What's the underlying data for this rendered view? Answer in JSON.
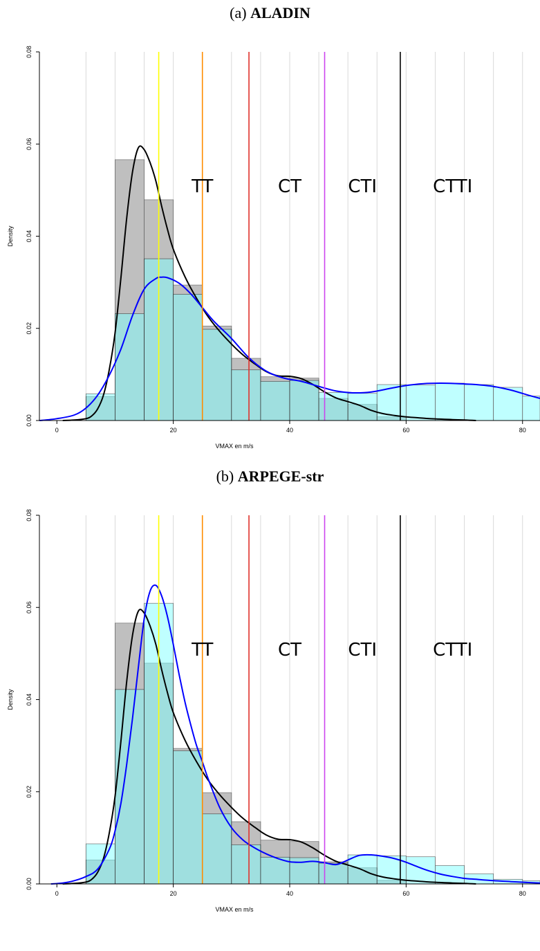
{
  "chart_data": [
    {
      "type": "bar",
      "panel_letter": "(a)",
      "title": "ALADIN",
      "xlabel": "VMAX en m/s",
      "ylabel": "Density",
      "xlim": [
        -3,
        83
      ],
      "ylim": [
        0,
        0.08
      ],
      "x_ticks": [
        "0",
        "20",
        "40",
        "60",
        "80"
      ],
      "y_ticks": [
        "0.00",
        "0.02",
        "0.04",
        "0.06",
        "0.08"
      ],
      "grid": "vertical",
      "bin_edges": [
        5,
        10,
        15,
        20,
        25,
        30,
        35,
        40,
        45,
        50,
        55,
        60,
        65,
        70,
        75,
        80,
        85
      ],
      "series": [
        {
          "kind": "histogram",
          "color": "#808080",
          "values": [
            0.0052,
            0.0566,
            0.0479,
            0.0294,
            0.0205,
            0.0135,
            0.0095,
            0.0092,
            0.0048,
            0.0035,
            0.0008,
            0,
            0,
            0,
            0,
            0
          ]
        },
        {
          "kind": "histogram",
          "color": "#80ffff",
          "values": [
            0.0058,
            0.0232,
            0.0351,
            0.0274,
            0.0198,
            0.011,
            0.0085,
            0.0087,
            0.0061,
            0.0059,
            0.0078,
            0.0077,
            0.0081,
            0.0078,
            0.0072,
            0.0053
          ]
        },
        {
          "kind": "density",
          "color": "#000000",
          "x": [
            1,
            3,
            5,
            6,
            7,
            8,
            9,
            10,
            11,
            12,
            13,
            14,
            15,
            16,
            17,
            18,
            19,
            20,
            22,
            24,
            26,
            28,
            30,
            32,
            34,
            36,
            38,
            40,
            42,
            44,
            46,
            48,
            50,
            52,
            54,
            56,
            58,
            60,
            62,
            64,
            66,
            68,
            70,
            72
          ],
          "y": [
            0,
            0.0001,
            0.0004,
            0.001,
            0.0025,
            0.0055,
            0.011,
            0.019,
            0.031,
            0.044,
            0.054,
            0.0592,
            0.0588,
            0.056,
            0.052,
            0.0465,
            0.0415,
            0.0372,
            0.0312,
            0.0265,
            0.0225,
            0.0193,
            0.0166,
            0.0142,
            0.0123,
            0.0106,
            0.0097,
            0.0096,
            0.0091,
            0.0078,
            0.0062,
            0.0049,
            0.0041,
            0.0033,
            0.0022,
            0.0015,
            0.0011,
            0.0008,
            0.0006,
            0.0004,
            0.0003,
            0.0002,
            0.0001,
            0
          ]
        },
        {
          "kind": "density",
          "color": "#0000ff",
          "x": [
            -3,
            0,
            3,
            5,
            7,
            9,
            11,
            13,
            15,
            17,
            18,
            19,
            21,
            23,
            25,
            27,
            30,
            33,
            36,
            39,
            42,
            45,
            48,
            51,
            54,
            57,
            60,
            63,
            66,
            69,
            72,
            75,
            78,
            81,
            83
          ],
          "y": [
            0,
            0.0004,
            0.0012,
            0.0027,
            0.0055,
            0.0098,
            0.0155,
            0.0228,
            0.0285,
            0.0308,
            0.0311,
            0.031,
            0.0298,
            0.0275,
            0.0245,
            0.0215,
            0.0178,
            0.0136,
            0.0107,
            0.0092,
            0.0085,
            0.0074,
            0.0064,
            0.006,
            0.0062,
            0.0069,
            0.0076,
            0.008,
            0.0081,
            0.008,
            0.0078,
            0.0074,
            0.0066,
            0.0055,
            0.0048
          ]
        }
      ],
      "vlines": [
        {
          "x": 17.5,
          "color": "#ffff00"
        },
        {
          "x": 25,
          "color": "#ff8c00"
        },
        {
          "x": 33,
          "color": "#e0302a"
        },
        {
          "x": 46,
          "color": "#cc44ee"
        },
        {
          "x": 59,
          "color": "#000000"
        }
      ],
      "annotations": [
        {
          "text": "TT",
          "x": 25,
          "y": 0.0495
        },
        {
          "text": "CT",
          "x": 40,
          "y": 0.0495
        },
        {
          "text": "CTI",
          "x": 52.5,
          "y": 0.0495
        },
        {
          "text": "CTTI",
          "x": 68,
          "y": 0.0495
        }
      ]
    },
    {
      "type": "bar",
      "panel_letter": "(b)",
      "title": "ARPEGE-str",
      "xlabel": "VMAX en m/s",
      "ylabel": "Density",
      "xlim": [
        -3,
        83
      ],
      "ylim": [
        0,
        0.08
      ],
      "x_ticks": [
        "0",
        "20",
        "40",
        "60",
        "80"
      ],
      "y_ticks": [
        "0.00",
        "0.02",
        "0.04",
        "0.06",
        "0.08"
      ],
      "grid": "vertical",
      "bin_edges": [
        5,
        10,
        15,
        20,
        25,
        30,
        35,
        40,
        45,
        50,
        55,
        60,
        65,
        70,
        75,
        80,
        85
      ],
      "series": [
        {
          "kind": "histogram",
          "color": "#808080",
          "values": [
            0.0052,
            0.0566,
            0.0479,
            0.0294,
            0.0198,
            0.0135,
            0.0095,
            0.0092,
            0.0048,
            0.0035,
            0.0008,
            0,
            0,
            0,
            0,
            0
          ]
        },
        {
          "kind": "histogram",
          "color": "#80ffff",
          "values": [
            0.0087,
            0.0422,
            0.0609,
            0.0289,
            0.0152,
            0.0085,
            0.0058,
            0.0057,
            0.0045,
            0.0063,
            0.0061,
            0.0059,
            0.004,
            0.0022,
            0.001,
            0.0007
          ]
        },
        {
          "kind": "density",
          "color": "#000000",
          "x": [
            1,
            3,
            5,
            6,
            7,
            8,
            9,
            10,
            11,
            12,
            13,
            14,
            15,
            16,
            17,
            18,
            19,
            20,
            22,
            24,
            26,
            28,
            30,
            32,
            34,
            36,
            38,
            40,
            42,
            44,
            46,
            48,
            50,
            52,
            54,
            56,
            58,
            60,
            62,
            64,
            66,
            68,
            70,
            72
          ],
          "y": [
            0,
            0.0001,
            0.0004,
            0.001,
            0.0025,
            0.0055,
            0.011,
            0.019,
            0.031,
            0.044,
            0.054,
            0.0592,
            0.0588,
            0.056,
            0.052,
            0.0465,
            0.0415,
            0.0372,
            0.0312,
            0.0265,
            0.0225,
            0.0193,
            0.0166,
            0.0142,
            0.0123,
            0.0106,
            0.0097,
            0.0096,
            0.0091,
            0.0078,
            0.0062,
            0.0049,
            0.0041,
            0.0033,
            0.0022,
            0.0015,
            0.0011,
            0.0008,
            0.0006,
            0.0004,
            0.0003,
            0.0002,
            0.0001,
            0
          ]
        },
        {
          "kind": "density",
          "color": "#0000ff",
          "x": [
            -1,
            1,
            3,
            5,
            7,
            9,
            10,
            11,
            12,
            13,
            14,
            15,
            16,
            17,
            18,
            19,
            20,
            21,
            22,
            23,
            24,
            25,
            26,
            28,
            30,
            32,
            34,
            36,
            38,
            40,
            42,
            44,
            46,
            48,
            50,
            52,
            54,
            56,
            58,
            60,
            62,
            64,
            66,
            68,
            70,
            72,
            75,
            78,
            81,
            83
          ],
          "y": [
            0,
            0.0002,
            0.0007,
            0.0016,
            0.0032,
            0.0075,
            0.0115,
            0.0175,
            0.026,
            0.036,
            0.047,
            0.0575,
            0.0635,
            0.0648,
            0.0625,
            0.058,
            0.052,
            0.0455,
            0.0395,
            0.0345,
            0.03,
            0.0265,
            0.0228,
            0.0165,
            0.0122,
            0.0095,
            0.0078,
            0.0065,
            0.0055,
            0.0048,
            0.0047,
            0.0049,
            0.0046,
            0.0042,
            0.0052,
            0.0062,
            0.0063,
            0.006,
            0.0055,
            0.0047,
            0.0037,
            0.0028,
            0.0021,
            0.0016,
            0.0012,
            0.001,
            0.0007,
            0.0005,
            0.0003,
            0.0002
          ]
        }
      ],
      "vlines": [
        {
          "x": 17.5,
          "color": "#ffff00"
        },
        {
          "x": 25,
          "color": "#ff8c00"
        },
        {
          "x": 33,
          "color": "#e0302a"
        },
        {
          "x": 46,
          "color": "#cc44ee"
        },
        {
          "x": 59,
          "color": "#000000"
        }
      ],
      "annotations": [
        {
          "text": "TT",
          "x": 25,
          "y": 0.0495
        },
        {
          "text": "CT",
          "x": 40,
          "y": 0.0495
        },
        {
          "text": "CTI",
          "x": 52.5,
          "y": 0.0495
        },
        {
          "text": "CTTI",
          "x": 68,
          "y": 0.0495
        }
      ]
    }
  ]
}
